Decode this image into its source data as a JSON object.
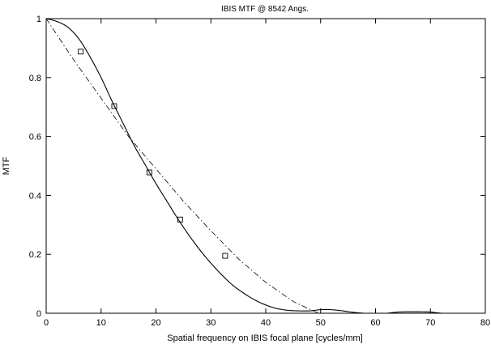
{
  "chart_data": {
    "type": "line",
    "title": "IBIS MTF  @ 8542 Angs.",
    "xlabel": "Spatial frequency on  IBIS focal plane [cycles/mm]",
    "ylabel": "MTF",
    "xlim": [
      0,
      80
    ],
    "ylim": [
      0,
      1
    ],
    "x_ticks": [
      0,
      10,
      20,
      30,
      40,
      50,
      60,
      70,
      80
    ],
    "y_ticks": [
      0,
      0.2,
      0.4,
      0.6,
      0.8,
      1
    ],
    "grid": false,
    "legend": "none",
    "series": [
      {
        "style": "solid",
        "color": "#000000",
        "x": [
          0,
          2,
          4,
          6,
          8,
          10,
          12,
          14,
          16,
          18,
          20,
          22,
          24,
          26,
          28,
          30,
          32,
          34,
          36,
          38,
          40,
          42,
          44,
          46,
          48,
          50,
          52,
          54,
          56,
          58,
          60,
          62,
          64,
          66,
          68,
          70,
          71,
          72
        ],
        "y": [
          1.0,
          0.99,
          0.97,
          0.93,
          0.87,
          0.8,
          0.72,
          0.645,
          0.57,
          0.505,
          0.44,
          0.38,
          0.32,
          0.265,
          0.215,
          0.17,
          0.13,
          0.095,
          0.068,
          0.045,
          0.028,
          0.016,
          0.01,
          0.008,
          0.008,
          0.012,
          0.012,
          0.008,
          0.003,
          0.0,
          0.0,
          0.0,
          0.004,
          0.005,
          0.005,
          0.004,
          0.002,
          0.0
        ]
      },
      {
        "style": "dashdot",
        "color": "#000000",
        "x": [
          0,
          5,
          10,
          15,
          20,
          25,
          30,
          35,
          40,
          45,
          49,
          50
        ],
        "y": [
          1.0,
          0.86,
          0.73,
          0.6,
          0.49,
          0.38,
          0.28,
          0.185,
          0.105,
          0.04,
          0.005,
          0.0
        ]
      },
      {
        "style": "markers",
        "marker": "square",
        "color": "#000000",
        "x": [
          6.3,
          12.4,
          18.8,
          24.4,
          32.6
        ],
        "y": [
          0.888,
          0.703,
          0.478,
          0.318,
          0.195
        ]
      }
    ]
  }
}
